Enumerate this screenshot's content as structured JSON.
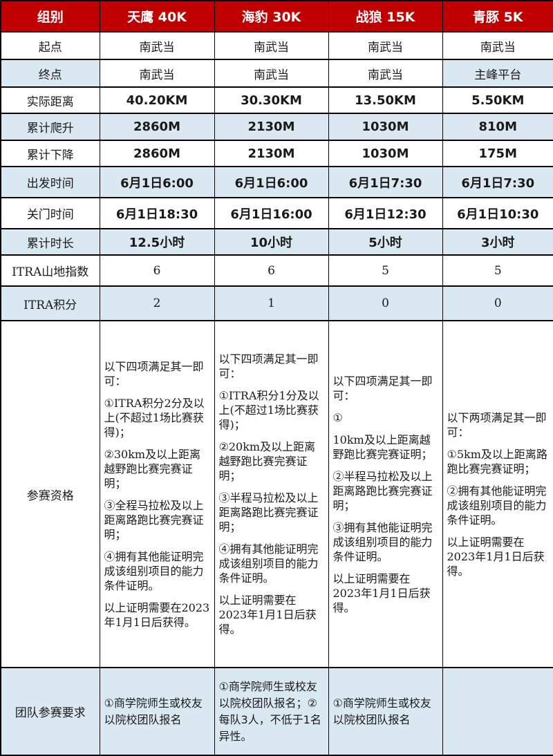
{
  "colors": {
    "header_bg": "#c00000",
    "header_text": "#ffffff",
    "stripe_bg": "#d9e8f1",
    "border": "#000000"
  },
  "header": {
    "label": "组别",
    "columns": [
      "天鹰 40K",
      "海豹 30K",
      "战狼 15K",
      "青豚 5K"
    ]
  },
  "rows": [
    {
      "label": "起点",
      "values": [
        "南武当",
        "南武当",
        "南武当",
        "南武当"
      ]
    },
    {
      "label": "终点",
      "values": [
        "南武当",
        "南武当",
        "南武当",
        "主峰平台"
      ]
    },
    {
      "label": "实际距离",
      "values": [
        "40.20KM",
        "30.30KM",
        "13.50KM",
        "5.50KM"
      ]
    },
    {
      "label": "累计爬升",
      "values": [
        "2860M",
        "2130M",
        "1030M",
        "810M"
      ]
    },
    {
      "label": "累计下降",
      "values": [
        "2860M",
        "2130M",
        "1030M",
        "175M"
      ]
    },
    {
      "label": "出发时间",
      "values": [
        "6月1日6:00",
        "6月1日6:00",
        "6月1日7:30",
        "6月1日7:30"
      ]
    },
    {
      "label": "关门时间",
      "values": [
        "6月1日18:30",
        "6月1日16:00",
        "6月1日12:30",
        "6月1日10:30"
      ]
    },
    {
      "label": "累计时长",
      "values": [
        "12.5小时",
        "10小时",
        "5小时",
        "3小时"
      ]
    },
    {
      "label": "ITRA山地指数",
      "values": [
        "6",
        "6",
        "5",
        "5"
      ]
    },
    {
      "label": "ITRA积分",
      "values": [
        "2",
        "1",
        "0",
        "0"
      ]
    }
  ],
  "qualification": {
    "label": "参赛资格",
    "cells": [
      [
        "以下四项满足其一即可：",
        "①ITRA积分2分及以上(不超过1场比赛获得)；",
        "②30km及以上距离越野跑比赛完赛证明；",
        "③全程马拉松及以上距离路跑比赛完赛证明；",
        "④拥有其他能证明完成该组别项目的能力条件证明。",
        "以上证明需要在2023年1月1日后获得。"
      ],
      [
        "以下四项满足其一即可：",
        "①ITRA积分1分及以上(不超过1场比赛获得)；",
        "②20km及以上距离越野跑比赛完赛证明；",
        "③半程马拉松及以上距离路跑比赛完赛证明；",
        "④拥有其他能证明完成该组别项目的能力条件证明。",
        "以上证明需要在2023年1月1日后获得。"
      ],
      [
        "以下四项满足其一即可：",
        "①",
        "10km及以上距离越野跑比赛完赛证明；",
        "②半程马拉松及以上距离路跑比赛完赛证明；",
        "③拥有其他能证明完成该组别项目的能力条件证明。",
        "以上证明需要在2023年1月1日后获得。"
      ],
      [
        "以下两项满足其一即可：",
        "①5km及以上距离路跑比赛完赛证明；",
        "②拥有其他能证明完成该组别项目的能力条件证明。",
        "以上证明需要在2023年1月1日后获得。"
      ]
    ]
  },
  "team": {
    "label": "团队参赛要求",
    "cells": [
      "①商学院师生或校友以院校团队报名",
      "①商学院师生或校友以院校团队报名；②每队3人，不低于1名异性。",
      "①商学院师生或校友以院校团队报名",
      ""
    ]
  }
}
